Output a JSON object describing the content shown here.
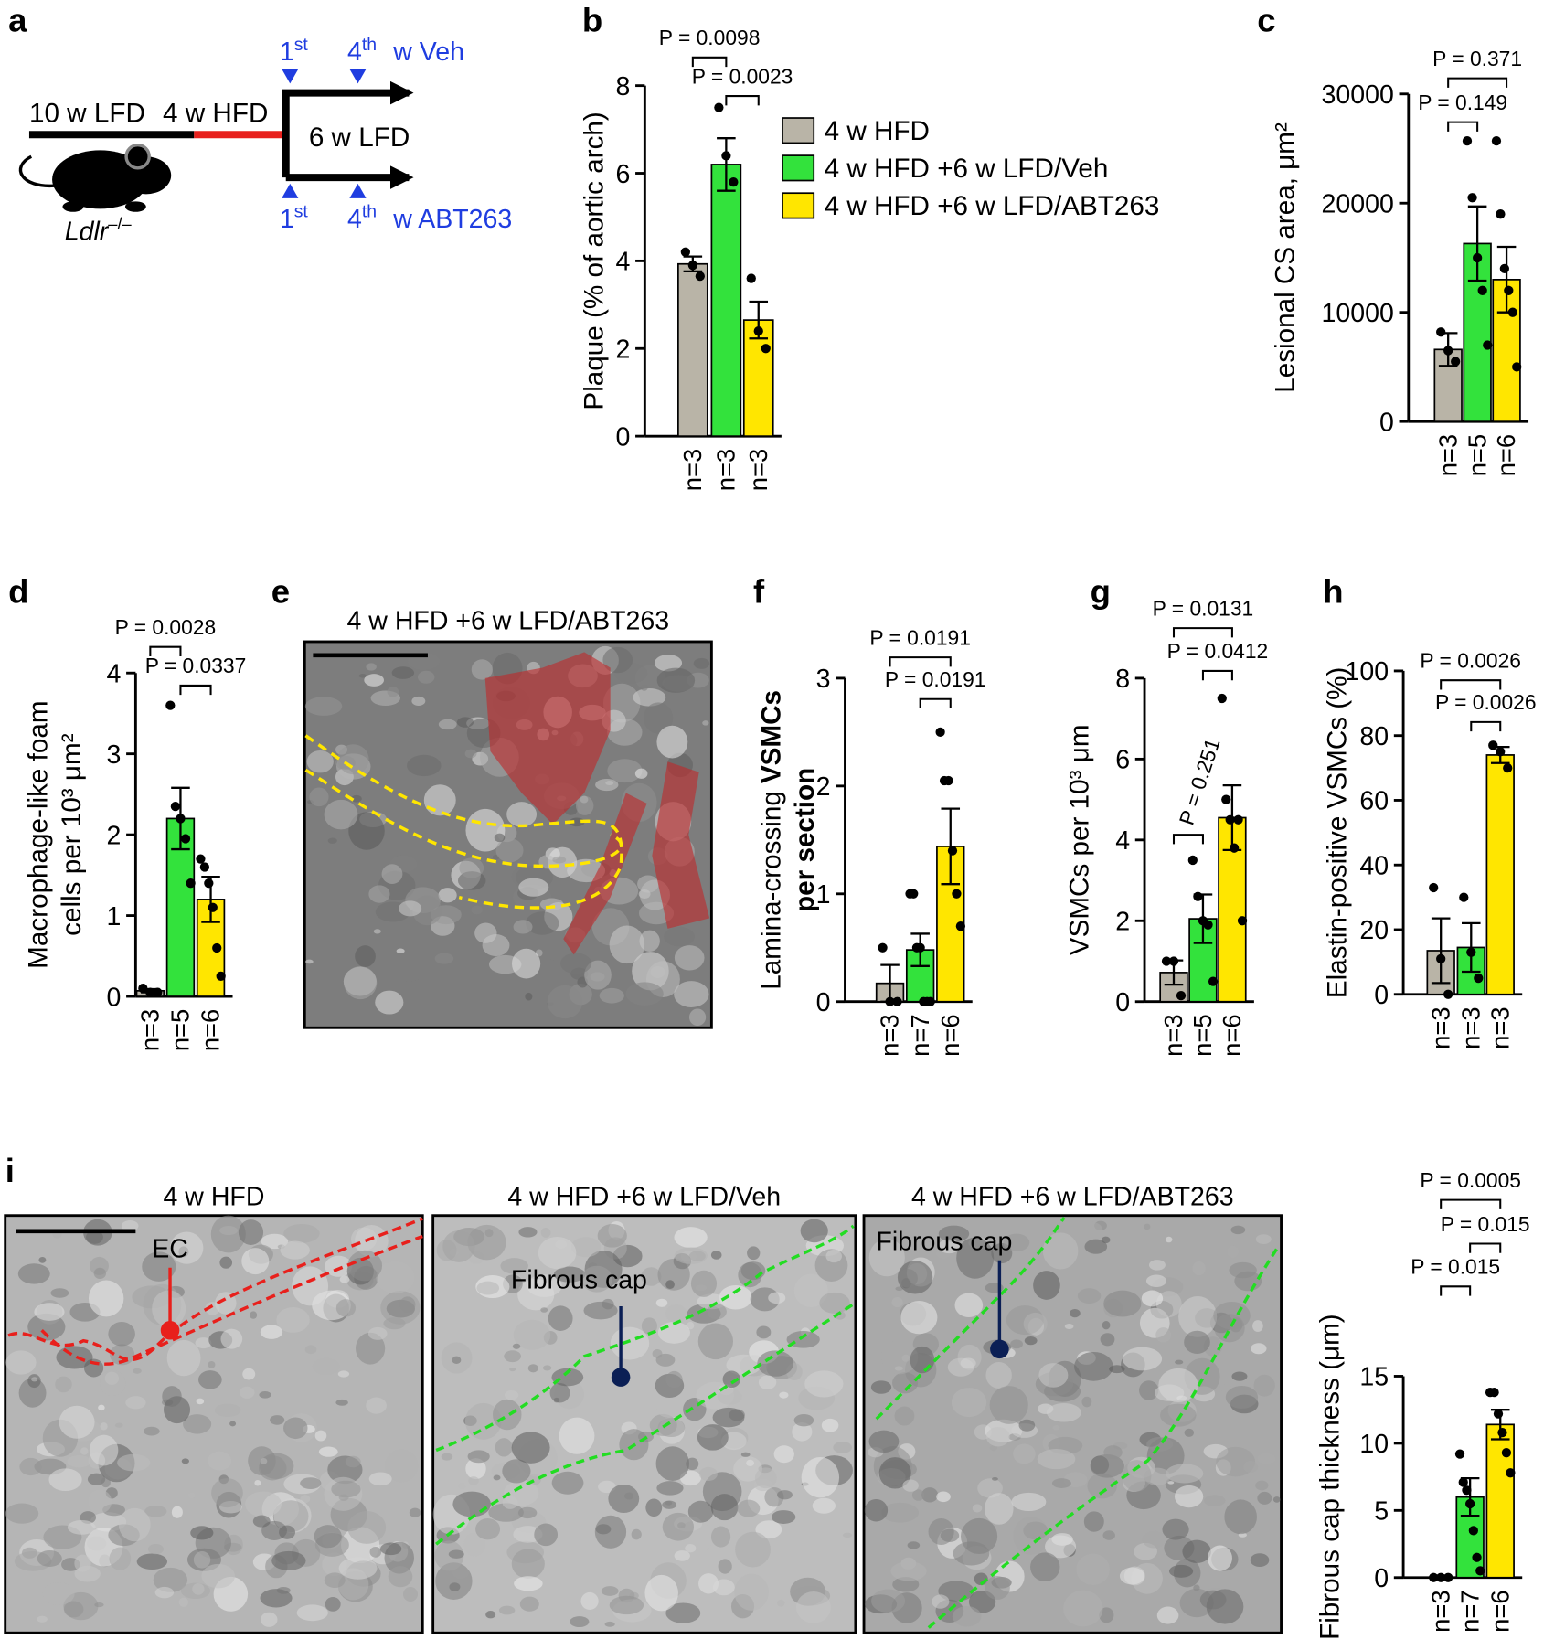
{
  "figure": {
    "panel_a": {
      "panel": "a",
      "diet_1": "10 w LFD",
      "diet_2": "4 w HFD",
      "diet_3": "6 w LFD",
      "first": "1",
      "first_suffix": "st",
      "fourth": "4",
      "fourth_suffix": "th",
      "veh": "w Veh",
      "abt": "w ABT263",
      "mouse": "Ldlr",
      "genotype": "–/–"
    },
    "panel_e": {
      "panel": "e",
      "title": "4 w HFD +6 w LFD/ABT263"
    },
    "panel_i": {
      "panel": "i",
      "images": [
        {
          "title": "4 w HFD",
          "annotation": "EC"
        },
        {
          "title": "4 w HFD +6 w LFD/Veh",
          "annotation": "Fibrous cap"
        },
        {
          "title": "4 w HFD +6 w LFD/ABT263",
          "annotation": "Fibrous cap"
        }
      ]
    }
  },
  "chart_data": [
    {
      "type": "bar",
      "panel": "b",
      "categories": [
        "n=3",
        "n=3",
        "n=3"
      ],
      "colors": [
        "#b9b4a7",
        "#33e23c",
        "#ffe600"
      ],
      "legend": [
        "4 w HFD",
        "4 w HFD +6 w LFD/Veh",
        "4 w HFD +6 w LFD/ABT263"
      ],
      "values": [
        3.93,
        6.2,
        2.65
      ],
      "errors": [
        0.17,
        0.6,
        0.42
      ],
      "dots": [
        [
          4.2,
          3.9,
          3.65
        ],
        [
          7.5,
          6.4,
          5.8
        ],
        [
          3.6,
          2.4,
          2.0
        ]
      ],
      "ylim": [
        0,
        8
      ],
      "yticks": [
        0,
        2,
        4,
        6,
        8
      ],
      "y_label": [
        [
          "Plaque (% of aortic arch)"
        ]
      ],
      "comparisons": [
        {
          "groups": [
            0,
            1
          ],
          "label": "P = 0.0098"
        },
        {
          "groups": [
            1,
            2
          ],
          "label": "P = 0.0023"
        }
      ]
    },
    {
      "type": "bar",
      "panel": "c",
      "categories": [
        "n=3",
        "n=5",
        "n=6"
      ],
      "colors": [
        "#b9b4a7",
        "#33e23c",
        "#ffe600"
      ],
      "values": [
        6600,
        16300,
        13000
      ],
      "errors": [
        1500,
        3400,
        3000
      ],
      "dots": [
        [
          8200,
          6500,
          5500
        ],
        [
          25700,
          20500,
          15000,
          12000,
          7000
        ],
        [
          25700,
          19000,
          14000,
          12000,
          10000,
          5000
        ]
      ],
      "ylim": [
        0,
        30000
      ],
      "yticks": [
        0,
        10000,
        20000,
        30000
      ],
      "y_label": [
        [
          "Lesional CS area, μm²"
        ]
      ],
      "comparisons": [
        {
          "groups": [
            0,
            2
          ],
          "label": "P = 0.371"
        },
        {
          "groups": [
            0,
            1
          ],
          "label": "P = 0.149"
        }
      ]
    },
    {
      "type": "bar",
      "panel": "d",
      "categories": [
        "n=3",
        "n=5",
        "n=6"
      ],
      "colors": [
        "#b9b4a7",
        "#33e23c",
        "#ffe600"
      ],
      "values": [
        0.07,
        2.2,
        1.2
      ],
      "errors": [
        0.02,
        0.38,
        0.28
      ],
      "dots": [
        [
          0.1,
          0.05,
          0.05
        ],
        [
          3.6,
          2.35,
          2.2,
          1.95,
          1.4
        ],
        [
          1.7,
          1.6,
          1.4,
          1.1,
          0.6,
          0.25
        ]
      ],
      "ylim": [
        0,
        4
      ],
      "yticks": [
        0,
        1,
        2,
        3,
        4
      ],
      "y_label": [
        [
          "Macrophage-like foam"
        ],
        [
          "cells per 10³ μm²"
        ]
      ],
      "comparisons": [
        {
          "groups": [
            0,
            1
          ],
          "label": "P = 0.0028"
        },
        {
          "groups": [
            1,
            2
          ],
          "label": "P = 0.0337"
        }
      ]
    },
    {
      "type": "bar",
      "panel": "f",
      "categories": [
        "n=3",
        "n=7",
        "n=6"
      ],
      "colors": [
        "#b9b4a7",
        "#33e23c",
        "#ffe600"
      ],
      "values": [
        0.17,
        0.48,
        1.44
      ],
      "errors": [
        0.17,
        0.15,
        0.35
      ],
      "dots": [
        [
          0.5,
          0,
          0
        ],
        [
          1.0,
          1.0,
          0.5,
          0.5,
          0,
          0,
          0
        ],
        [
          2.5,
          2.05,
          2.05,
          1.4,
          1.0,
          0.7
        ]
      ],
      "ylim": [
        0,
        3
      ],
      "yticks": [
        0,
        1,
        2,
        3
      ],
      "y_label": [
        [
          "Lamina-crossing",
          "VSMCs"
        ],
        [
          "per section"
        ]
      ],
      "y_label_bold": [
        [
          false,
          true
        ],
        [
          true
        ]
      ],
      "comparisons": [
        {
          "groups": [
            0,
            2
          ],
          "label": "P = 0.0191"
        },
        {
          "groups": [
            1,
            2
          ],
          "label": "P = 0.0191"
        }
      ]
    },
    {
      "type": "bar",
      "panel": "g",
      "categories": [
        "n=3",
        "n=5",
        "n=6"
      ],
      "colors": [
        "#b9b4a7",
        "#33e23c",
        "#ffe600"
      ],
      "values": [
        0.72,
        2.05,
        4.55
      ],
      "errors": [
        0.3,
        0.6,
        0.8
      ],
      "dots": [
        [
          1.0,
          1.0,
          0.15
        ],
        [
          3.5,
          2.6,
          2.0,
          1.9,
          0.5
        ],
        [
          7.5,
          5.0,
          4.5,
          3.8,
          4.5,
          2.0
        ]
      ],
      "ylim": [
        0,
        8
      ],
      "yticks": [
        0,
        2,
        4,
        6,
        8
      ],
      "y_label": [
        [
          "VSMCs per 10³ μm"
        ]
      ],
      "comparisons": [
        {
          "groups": [
            0,
            2
          ],
          "label": "P = 0.0131"
        },
        {
          "groups": [
            1,
            2
          ],
          "label": "P = 0.0412"
        },
        {
          "groups": [
            0,
            1
          ],
          "label": "P = 0.251"
        }
      ]
    },
    {
      "type": "bar",
      "panel": "h",
      "categories": [
        "n=3",
        "n=3",
        "n=3"
      ],
      "colors": [
        "#b9b4a7",
        "#33e23c",
        "#ffe600"
      ],
      "values": [
        13.5,
        14.5,
        74
      ],
      "errors": [
        10,
        7.5,
        2.5
      ],
      "dots": [
        [
          33,
          11,
          0
        ],
        [
          30,
          13,
          5
        ],
        [
          77,
          75,
          70
        ]
      ],
      "ylim": [
        0,
        100
      ],
      "yticks": [
        0,
        20,
        40,
        60,
        80,
        100
      ],
      "y_label": [
        [
          "Elastin-positive VSMCs (%)"
        ]
      ],
      "comparisons": [
        {
          "groups": [
            0,
            2
          ],
          "label": "P = 0.0026"
        },
        {
          "groups": [
            1,
            2
          ],
          "label": "P = 0.0026"
        }
      ]
    },
    {
      "type": "bar",
      "panel": "i",
      "categories": [
        "n=3",
        "n=7",
        "n=6"
      ],
      "colors": [
        "#b9b4a7",
        "#33e23c",
        "#ffe600"
      ],
      "values": [
        0,
        6.0,
        11.4
      ],
      "errors": [
        0,
        1.4,
        1.1
      ],
      "dots": [
        [
          0,
          0,
          0
        ],
        [
          9.2,
          7.1,
          6.5,
          5.5,
          3.5,
          1.5,
          0.5
        ],
        [
          13.8,
          13.8,
          12.2,
          10.8,
          9.3,
          7.8
        ]
      ],
      "ylim": [
        0,
        15
      ],
      "yticks": [
        0,
        5,
        10,
        15
      ],
      "y_label": [
        [
          "Fibrous cap thickness (μm)"
        ]
      ],
      "comparisons": [
        {
          "groups": [
            0,
            2
          ],
          "label": "P = 0.0005"
        },
        {
          "groups": [
            1,
            2
          ],
          "label": "P = 0.015"
        },
        {
          "groups": [
            0,
            1
          ],
          "label": "P = 0.015"
        }
      ]
    }
  ]
}
